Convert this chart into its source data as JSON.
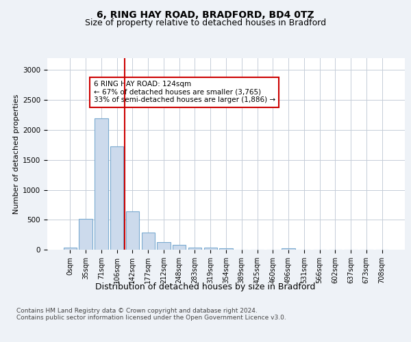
{
  "title": "6, RING HAY ROAD, BRADFORD, BD4 0TZ",
  "subtitle": "Size of property relative to detached houses in Bradford",
  "xlabel": "Distribution of detached houses by size in Bradford",
  "ylabel": "Number of detached properties",
  "bar_color": "#ccdaec",
  "bar_edge_color": "#7aaad0",
  "categories": [
    "0sqm",
    "35sqm",
    "71sqm",
    "106sqm",
    "142sqm",
    "177sqm",
    "212sqm",
    "248sqm",
    "283sqm",
    "319sqm",
    "354sqm",
    "389sqm",
    "425sqm",
    "460sqm",
    "496sqm",
    "531sqm",
    "566sqm",
    "602sqm",
    "637sqm",
    "673sqm",
    "708sqm"
  ],
  "values": [
    30,
    520,
    2190,
    1720,
    640,
    290,
    130,
    75,
    40,
    30,
    20,
    5,
    5,
    3,
    25,
    2,
    2,
    2,
    2,
    2,
    2
  ],
  "ylim": [
    0,
    3200
  ],
  "yticks": [
    0,
    500,
    1000,
    1500,
    2000,
    2500,
    3000
  ],
  "property_line_x": 3.5,
  "annotation_text": "6 RING HAY ROAD: 124sqm\n← 67% of detached houses are smaller (3,765)\n33% of semi-detached houses are larger (1,886) →",
  "annotation_box_color": "white",
  "annotation_box_edge_color": "#cc0000",
  "vline_color": "#cc0000",
  "footer_text": "Contains HM Land Registry data © Crown copyright and database right 2024.\nContains public sector information licensed under the Open Government Licence v3.0.",
  "background_color": "#eef2f7",
  "plot_bg_color": "white",
  "grid_color": "#c5cdd8",
  "title_fontsize": 10,
  "subtitle_fontsize": 9,
  "ylabel_fontsize": 8,
  "xlabel_fontsize": 9,
  "tick_fontsize": 7,
  "footer_fontsize": 6.5
}
